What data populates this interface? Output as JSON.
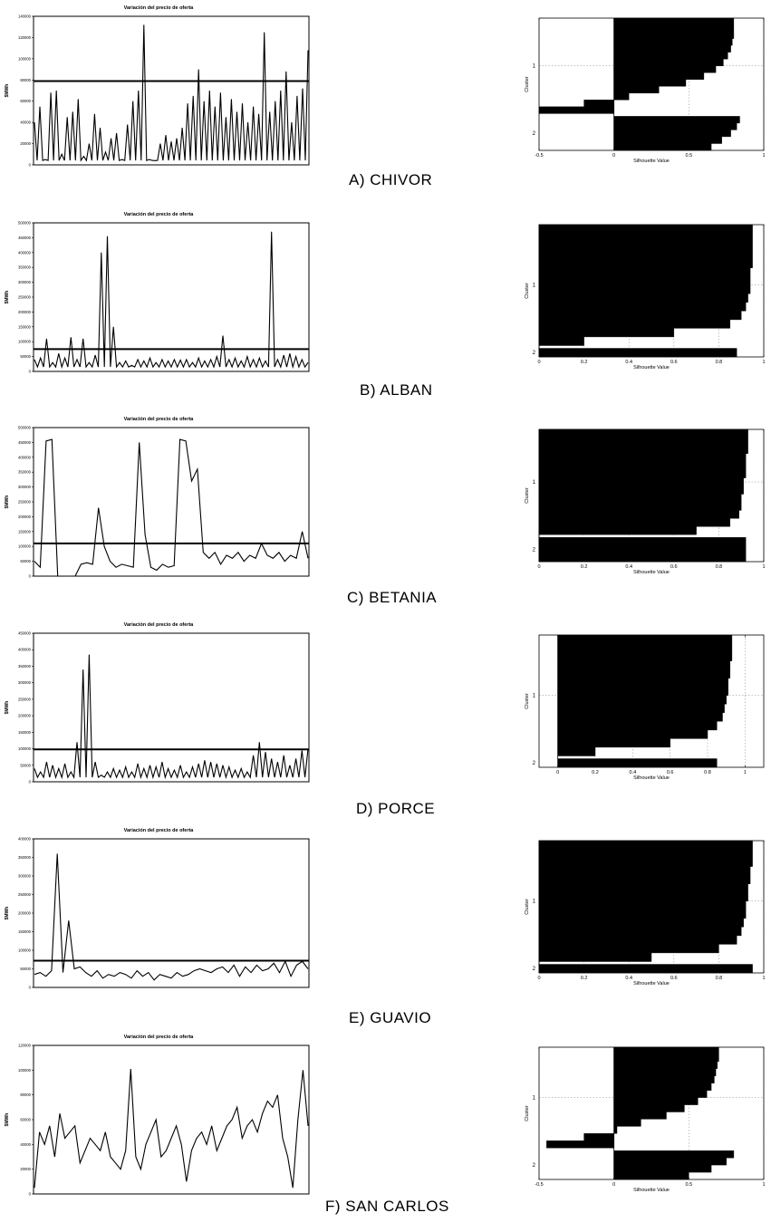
{
  "price_chart_title": "Variación del precio de oferta",
  "price_ylabel": "$MWh",
  "silhouette_xlabel": "Silhouette Value",
  "silhouette_ylabel": "Cluster",
  "chart_data": [
    {
      "id": "chivor-price",
      "type": "line",
      "title": "Variación del precio de oferta",
      "ylabel": "$MWh",
      "ylim": [
        0,
        140000
      ],
      "yticks": [
        0,
        20000,
        40000,
        60000,
        80000,
        100000,
        120000,
        140000
      ],
      "threshold": 79000,
      "spiky": true,
      "series": [
        {
          "values": [
            40000,
            55000,
            5000,
            68000,
            70000,
            10000,
            45000,
            50000,
            62000,
            8000,
            20000,
            48000,
            35000,
            12000,
            25000,
            30000,
            5000,
            38000,
            60000,
            70000,
            132000,
            5000,
            4000,
            20000,
            28000,
            22000,
            25000,
            35000,
            58000,
            65000,
            90000,
            60000,
            70000,
            55000,
            68000,
            45000,
            62000,
            50000,
            58000,
            40000,
            55000,
            48000,
            125000,
            50000,
            60000,
            70000,
            88000,
            40000,
            65000,
            72000,
            108000
          ]
        }
      ]
    },
    {
      "id": "chivor-silhouette",
      "type": "area",
      "xlabel": "Silhouette Value",
      "ylabel": "Cluster",
      "xlim": [
        -0.5,
        1
      ],
      "xticks": [
        -0.5,
        0,
        0.5,
        1
      ],
      "clusters": [
        "1",
        "2"
      ],
      "series": [
        {
          "name": "1",
          "values": [
            0.8,
            0.8,
            0.8,
            0.79,
            0.78,
            0.76,
            0.73,
            0.68,
            0.6,
            0.48,
            0.3,
            0.1,
            -0.2,
            -0.5
          ]
        },
        {
          "name": "2",
          "values": [
            0.84,
            0.82,
            0.78,
            0.72,
            0.65
          ]
        }
      ]
    },
    {
      "id": "alban-price",
      "type": "line",
      "title": "Variación del precio de oferta",
      "ylabel": "$MWh",
      "ylim": [
        0,
        500000
      ],
      "yticks": [
        0,
        50000,
        100000,
        150000,
        200000,
        250000,
        300000,
        350000,
        400000,
        450000,
        500000
      ],
      "threshold": 75000,
      "spiky": true,
      "series": [
        {
          "values": [
            40000,
            45000,
            110000,
            30000,
            60000,
            45000,
            115000,
            40000,
            110000,
            30000,
            55000,
            400000,
            455000,
            150000,
            30000,
            35000,
            20000,
            40000,
            35000,
            45000,
            30000,
            40000,
            35000,
            40000,
            38000,
            40000,
            30000,
            45000,
            35000,
            40000,
            50000,
            120000,
            40000,
            45000,
            35000,
            50000,
            40000,
            45000,
            35000,
            470000,
            40000,
            55000,
            60000,
            50000,
            40000,
            30000
          ]
        }
      ]
    },
    {
      "id": "alban-silhouette",
      "type": "area",
      "xlabel": "Silhouette Value",
      "ylabel": "Cluster",
      "xlim": [
        0,
        1
      ],
      "xticks": [
        0,
        0.2,
        0.4,
        0.6,
        0.8,
        1
      ],
      "clusters": [
        "1",
        "2"
      ],
      "series": [
        {
          "name": "1",
          "values": [
            0.95,
            0.95,
            0.95,
            0.95,
            0.95,
            0.94,
            0.94,
            0.94,
            0.93,
            0.92,
            0.9,
            0.85,
            0.6,
            0.2
          ]
        },
        {
          "name": "2",
          "values": [
            0.88
          ]
        }
      ]
    },
    {
      "id": "betania-price",
      "type": "line",
      "title": "Variación del precio de oferta",
      "ylabel": "$MWh",
      "ylim": [
        0,
        500000
      ],
      "yticks": [
        0,
        50000,
        100000,
        150000,
        200000,
        250000,
        300000,
        350000,
        400000,
        450000,
        500000
      ],
      "threshold": 110000,
      "spiky": false,
      "series": [
        {
          "values": [
            50000,
            30000,
            455000,
            460000,
            0,
            0,
            0,
            0,
            40000,
            45000,
            40000,
            230000,
            100000,
            50000,
            30000,
            40000,
            35000,
            30000,
            450000,
            140000,
            30000,
            20000,
            40000,
            30000,
            35000,
            460000,
            455000,
            320000,
            360000,
            80000,
            60000,
            80000,
            40000,
            70000,
            60000,
            80000,
            50000,
            70000,
            60000,
            110000,
            70000,
            60000,
            80000,
            50000,
            70000,
            60000,
            150000,
            60000
          ]
        }
      ]
    },
    {
      "id": "betania-silhouette",
      "type": "area",
      "xlabel": "Silhouette Value",
      "ylabel": "Cluster",
      "xlim": [
        0,
        1
      ],
      "xticks": [
        0,
        0.2,
        0.4,
        0.6,
        0.8,
        1
      ],
      "clusters": [
        "1",
        "2"
      ],
      "series": [
        {
          "name": "1",
          "values": [
            0.93,
            0.93,
            0.93,
            0.92,
            0.92,
            0.92,
            0.91,
            0.91,
            0.9,
            0.9,
            0.89,
            0.85,
            0.7
          ]
        },
        {
          "name": "2",
          "values": [
            0.92,
            0.92,
            0.92
          ]
        }
      ]
    },
    {
      "id": "porce-price",
      "type": "line",
      "title": "Variación del precio de oferta",
      "ylabel": "$MWh",
      "ylim": [
        0,
        450000
      ],
      "yticks": [
        0,
        50000,
        100000,
        150000,
        200000,
        250000,
        300000,
        350000,
        400000,
        450000
      ],
      "threshold": 98000,
      "spiky": true,
      "series": [
        {
          "values": [
            40000,
            30000,
            60000,
            50000,
            40000,
            55000,
            30000,
            120000,
            340000,
            385000,
            60000,
            20000,
            30000,
            40000,
            35000,
            45000,
            30000,
            55000,
            40000,
            50000,
            45000,
            60000,
            40000,
            35000,
            50000,
            30000,
            45000,
            55000,
            65000,
            60000,
            55000,
            50000,
            45000,
            35000,
            40000,
            30000,
            80000,
            120000,
            90000,
            70000,
            60000,
            80000,
            50000,
            70000,
            95000,
            100000
          ]
        }
      ]
    },
    {
      "id": "porce-silhouette",
      "type": "area",
      "xlabel": "Silhouette Value",
      "ylabel": "Cluster",
      "xlim": [
        -0.1,
        1.1
      ],
      "xticks": [
        0,
        0.2,
        0.4,
        0.6,
        0.8,
        1
      ],
      "clusters": [
        "1",
        "2"
      ],
      "series": [
        {
          "name": "1",
          "values": [
            0.93,
            0.93,
            0.93,
            0.92,
            0.92,
            0.91,
            0.91,
            0.9,
            0.89,
            0.88,
            0.85,
            0.8,
            0.6,
            0.2
          ]
        },
        {
          "name": "2",
          "values": [
            0.85
          ]
        }
      ]
    },
    {
      "id": "guavio-price",
      "type": "line",
      "title": "Variación del precio de oferta",
      "ylabel": "$MWh",
      "ylim": [
        0,
        400000
      ],
      "yticks": [
        0,
        50000,
        100000,
        150000,
        200000,
        250000,
        300000,
        350000,
        400000
      ],
      "threshold": 72000,
      "spiky": false,
      "series": [
        {
          "values": [
            35000,
            40000,
            30000,
            45000,
            360000,
            40000,
            180000,
            50000,
            55000,
            40000,
            30000,
            45000,
            25000,
            35000,
            30000,
            40000,
            35000,
            25000,
            45000,
            30000,
            40000,
            20000,
            35000,
            30000,
            25000,
            40000,
            30000,
            35000,
            45000,
            50000,
            45000,
            40000,
            50000,
            55000,
            40000,
            60000,
            30000,
            55000,
            40000,
            60000,
            45000,
            50000,
            65000,
            40000,
            70000,
            30000,
            60000,
            70000,
            50000
          ]
        }
      ]
    },
    {
      "id": "guavio-silhouette",
      "type": "area",
      "xlabel": "Silhouette Value",
      "ylabel": "Cluster",
      "xlim": [
        0,
        1
      ],
      "xticks": [
        0,
        0.2,
        0.4,
        0.6,
        0.8,
        1
      ],
      "clusters": [
        "1",
        "2"
      ],
      "series": [
        {
          "name": "1",
          "values": [
            0.95,
            0.95,
            0.95,
            0.94,
            0.94,
            0.93,
            0.93,
            0.92,
            0.92,
            0.91,
            0.9,
            0.88,
            0.8,
            0.5
          ]
        },
        {
          "name": "2",
          "values": [
            0.95
          ]
        }
      ]
    },
    {
      "id": "sancarlos-price",
      "type": "line",
      "title": "Variación del precio de oferta",
      "ylabel": "$MWh",
      "ylim": [
        0,
        120000
      ],
      "yticks": [
        0,
        20000,
        40000,
        60000,
        80000,
        100000,
        120000
      ],
      "threshold": null,
      "spiky": false,
      "series": [
        {
          "values": [
            5000,
            50000,
            40000,
            55000,
            30000,
            65000,
            45000,
            50000,
            55000,
            25000,
            35000,
            45000,
            40000,
            35000,
            50000,
            30000,
            25000,
            20000,
            35000,
            101000,
            30000,
            20000,
            40000,
            50000,
            60000,
            30000,
            35000,
            45000,
            55000,
            40000,
            10000,
            35000,
            45000,
            50000,
            40000,
            55000,
            35000,
            45000,
            55000,
            60000,
            70000,
            45000,
            55000,
            60000,
            50000,
            65000,
            75000,
            70000,
            80000,
            45000,
            30000,
            5000,
            60000,
            100000,
            55000
          ]
        }
      ]
    },
    {
      "id": "sancarlos-silhouette",
      "type": "area",
      "xlabel": "Silhouette Value",
      "ylabel": "Cluster",
      "xlim": [
        -0.5,
        1
      ],
      "xticks": [
        -0.5,
        0,
        0.5,
        1
      ],
      "clusters": [
        "1",
        "2"
      ],
      "series": [
        {
          "name": "1",
          "values": [
            0.7,
            0.7,
            0.69,
            0.68,
            0.67,
            0.65,
            0.62,
            0.56,
            0.47,
            0.35,
            0.18,
            0.02,
            -0.2,
            -0.45
          ]
        },
        {
          "name": "2",
          "values": [
            0.8,
            0.75,
            0.65,
            0.5
          ]
        }
      ]
    }
  ],
  "captions": [
    "A) CHIVOR",
    "B) ALBAN",
    "C) BETANIA",
    "D) PORCE",
    "E) GUAVIO",
    "F) SAN CARLOS"
  ]
}
